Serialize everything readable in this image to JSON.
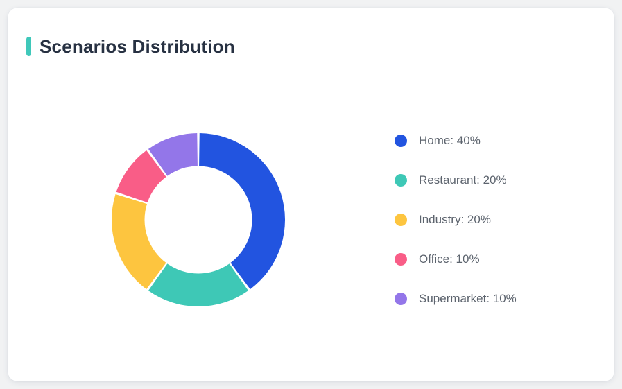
{
  "card": {
    "title": "Scenarios Distribution"
  },
  "chart_data": {
    "type": "pie",
    "variant": "donut",
    "title": "Scenarios Distribution",
    "labels": [
      "Home",
      "Restaurant",
      "Industry",
      "Office",
      "Supermarket"
    ],
    "values": [
      40,
      20,
      20,
      10,
      10
    ],
    "unit": "%",
    "colors": [
      "#2254e0",
      "#3ec8b6",
      "#fdc53f",
      "#f95d87",
      "#9376e9"
    ],
    "legend_position": "right",
    "legend_separator": ": ",
    "start_angle_deg": 0,
    "direction": "clockwise",
    "inner_radius_ratio": 0.62,
    "segment_gap_deg": 1.6
  },
  "theme": {
    "page_bg": "#f1f2f3",
    "card_bg": "#ffffff",
    "accent_color": "#3fc8ba",
    "title_color": "#273142",
    "legend_text_color": "#5d646e"
  }
}
